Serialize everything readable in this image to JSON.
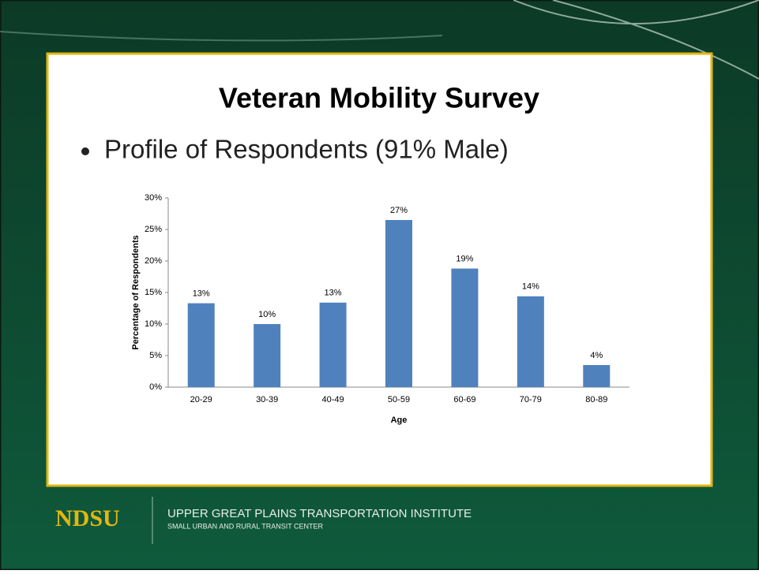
{
  "slide": {
    "title": "Veteran Mobility Survey",
    "bullet": "Profile of Respondents (91% Male)",
    "logo": "NDSU",
    "institute": "UPPER GREAT PLAINS TRANSPORTATION INSTITUTE",
    "center": "SMALL URBAN AND RURAL TRANSIT CENTER"
  },
  "chart_data": {
    "type": "bar",
    "xlabel": "Age",
    "ylabel": "Percentage of Respondents",
    "categories": [
      "20-29",
      "30-39",
      "40-49",
      "50-59",
      "60-69",
      "70-79",
      "80-89"
    ],
    "values": [
      13.3,
      10.0,
      13.4,
      26.5,
      18.8,
      14.4,
      3.5
    ],
    "value_labels": [
      "13%",
      "10%",
      "13%",
      "27%",
      "19%",
      "14%",
      "4%"
    ],
    "color": "#4f81bd",
    "ylim": [
      0,
      30
    ],
    "yticks": [
      {
        "value": 0,
        "label": "0%"
      },
      {
        "value": 5,
        "label": "5%"
      },
      {
        "value": 10,
        "label": "10%"
      },
      {
        "value": 15,
        "label": "15%"
      },
      {
        "value": 20,
        "label": "20%"
      },
      {
        "value": 25,
        "label": "25%"
      },
      {
        "value": 30,
        "label": "30%"
      }
    ],
    "grid": false
  }
}
